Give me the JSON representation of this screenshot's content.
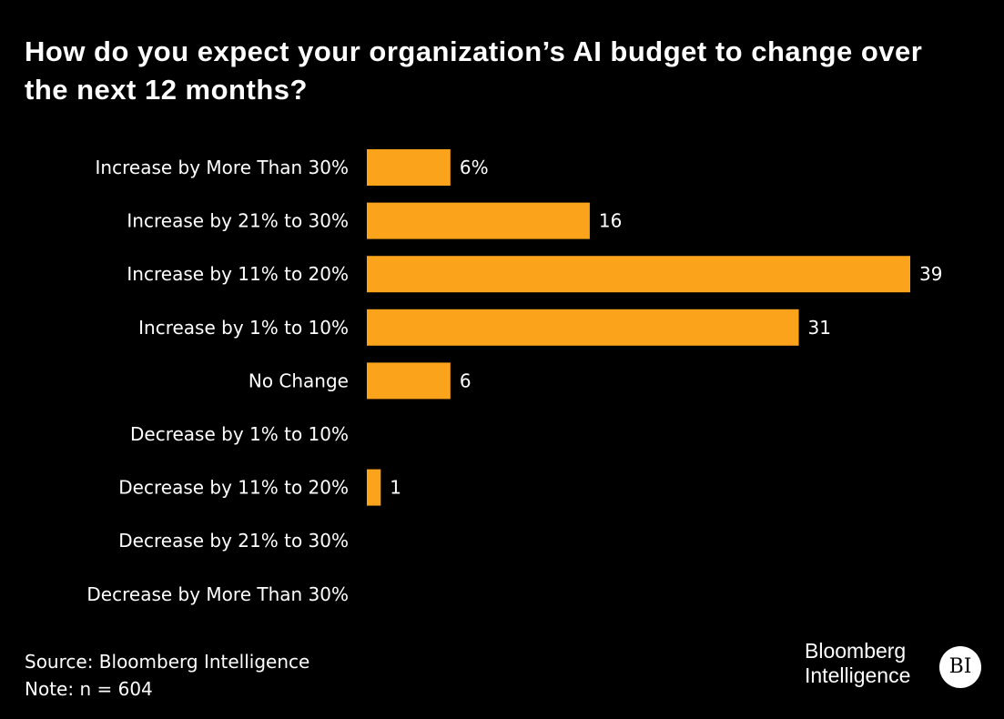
{
  "chart_data": {
    "type": "bar",
    "orientation": "horizontal",
    "title": "How do you expect your organization’s AI budget to change over the next 12 months?",
    "categories": [
      "Increase by More Than 30%",
      "Increase by 21% to 30%",
      "Increase by 11% to 20%",
      "Increase by 1% to 10%",
      "No Change",
      "Decrease by 1% to 10%",
      "Decrease by 11% to 20%",
      "Decrease by 21% to 30%",
      "Decrease by More Than 30%"
    ],
    "values": [
      6,
      16,
      39,
      31,
      6,
      0,
      1,
      0,
      0
    ],
    "data_labels": [
      "6%",
      "16",
      "39",
      "31",
      "6",
      "",
      "1",
      "",
      ""
    ],
    "xlim": [
      0,
      39
    ],
    "grid": false,
    "bar_color": "#FBA31B",
    "background": "#000000"
  },
  "footer": {
    "source": "Source: Bloomberg Intelligence",
    "note": "Note: n = 604"
  },
  "logo": {
    "line1": "Bloomberg",
    "line2": "Intelligence",
    "badge": "BI"
  }
}
